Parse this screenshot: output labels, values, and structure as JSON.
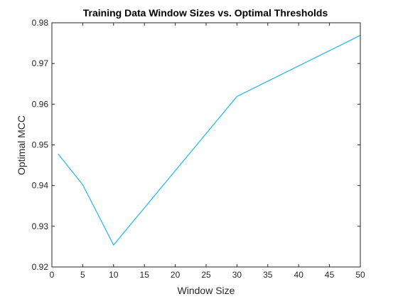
{
  "chart_data": {
    "type": "line",
    "title": "Training Data Window Sizes vs. Optimal Thresholds",
    "xlabel": "Window Size",
    "ylabel": "Optimal MCC",
    "xlim": [
      0,
      50
    ],
    "ylim": [
      0.92,
      0.98
    ],
    "xticks": [
      "0",
      "5",
      "10",
      "15",
      "20",
      "25",
      "30",
      "35",
      "40",
      "45",
      "50"
    ],
    "yticks": [
      "0.92",
      "0.93",
      "0.94",
      "0.95",
      "0.96",
      "0.97",
      "0.98"
    ],
    "grid": false,
    "legend": "none",
    "series": [
      {
        "color": "#1fb8e6",
        "x": [
          1,
          5,
          10,
          30,
          50
        ],
        "y": [
          0.9478,
          0.9402,
          0.9254,
          0.9619,
          0.9769
        ]
      }
    ],
    "colors": {
      "axis": "#262626",
      "line": "#1fb8e6",
      "background": "#ffffff"
    }
  }
}
